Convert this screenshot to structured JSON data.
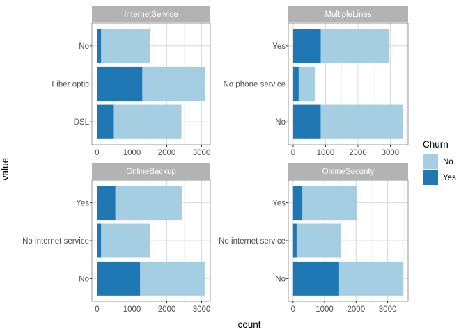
{
  "chart_data": {
    "type": "bar",
    "orientation": "horizontal",
    "stacked": true,
    "xlabel": "count",
    "ylabel": "value",
    "grid": true,
    "legend": {
      "title": "Churn",
      "placement": "right",
      "entries": [
        {
          "label": "No",
          "color": "#a6cee3"
        },
        {
          "label": "Yes",
          "color": "#1f78b4"
        }
      ]
    },
    "panels": [
      {
        "title": "InternetService",
        "xlim": [
          -150,
          3250
        ],
        "xticks": [
          0,
          1000,
          2000,
          3000
        ],
        "categories": [
          "DSL",
          "Fiber optic",
          "No"
        ],
        "series": [
          {
            "name": "Yes",
            "values": [
              459,
              1297,
              113
            ]
          },
          {
            "name": "No",
            "values": [
              1962,
              1799,
              1413
            ]
          }
        ]
      },
      {
        "title": "MultipleLines",
        "xlim": [
          -150,
          3550
        ],
        "xticks": [
          0,
          1000,
          2000,
          3000
        ],
        "categories": [
          "No",
          "No phone service",
          "Yes"
        ],
        "series": [
          {
            "name": "Yes",
            "values": [
              849,
              170,
              850
            ]
          },
          {
            "name": "No",
            "values": [
              2541,
              512,
              2121
            ]
          }
        ]
      },
      {
        "title": "OnlineBackup",
        "xlim": [
          -150,
          3250
        ],
        "xticks": [
          0,
          1000,
          2000,
          3000
        ],
        "categories": [
          "No",
          "No internet service",
          "Yes"
        ],
        "series": [
          {
            "name": "Yes",
            "values": [
              1233,
              113,
              523
            ]
          },
          {
            "name": "No",
            "values": [
              1855,
              1413,
              1906
            ]
          }
        ]
      },
      {
        "title": "OnlineSecurity",
        "xlim": [
          -150,
          3650
        ],
        "xticks": [
          0,
          1000,
          2000,
          3000
        ],
        "categories": [
          "No",
          "No internet service",
          "Yes"
        ],
        "series": [
          {
            "name": "Yes",
            "values": [
              1461,
              113,
              295
            ]
          },
          {
            "name": "No",
            "values": [
              2037,
              1413,
              1724
            ]
          }
        ]
      }
    ]
  }
}
